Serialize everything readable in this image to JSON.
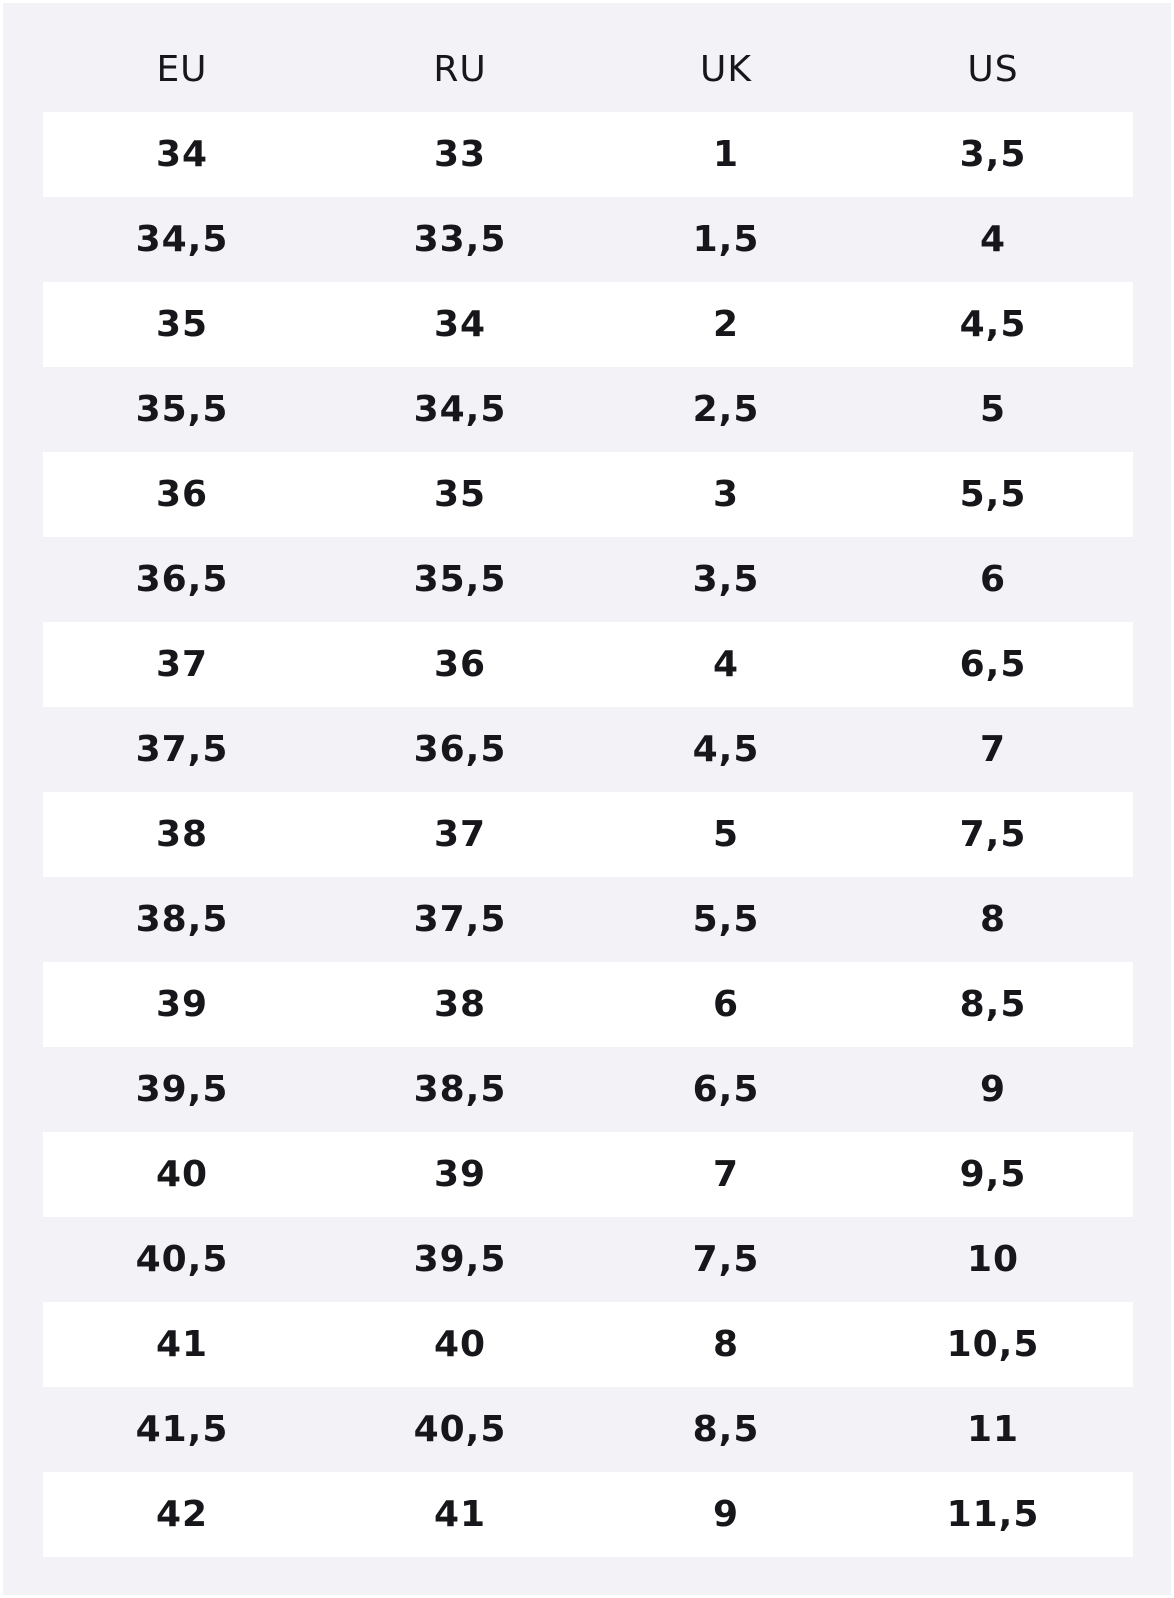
{
  "size_table": {
    "columns": [
      "EU",
      "RU",
      "UK",
      "US"
    ],
    "rows": [
      [
        "34",
        "33",
        "1",
        "3,5"
      ],
      [
        "34,5",
        "33,5",
        "1,5",
        "4"
      ],
      [
        "35",
        "34",
        "2",
        "4,5"
      ],
      [
        "35,5",
        "34,5",
        "2,5",
        "5"
      ],
      [
        "36",
        "35",
        "3",
        "5,5"
      ],
      [
        "36,5",
        "35,5",
        "3,5",
        "6"
      ],
      [
        "37",
        "36",
        "4",
        "6,5"
      ],
      [
        "37,5",
        "36,5",
        "4,5",
        "7"
      ],
      [
        "38",
        "37",
        "5",
        "7,5"
      ],
      [
        "38,5",
        "37,5",
        "5,5",
        "8"
      ],
      [
        "39",
        "38",
        "6",
        "8,5"
      ],
      [
        "39,5",
        "38,5",
        "6,5",
        "9"
      ],
      [
        "40",
        "39",
        "7",
        "9,5"
      ],
      [
        "40,5",
        "39,5",
        "7,5",
        "10"
      ],
      [
        "41",
        "40",
        "8",
        "10,5"
      ],
      [
        "41,5",
        "40,5",
        "8,5",
        "11"
      ],
      [
        "42",
        "41",
        "9",
        "11,5"
      ]
    ]
  },
  "colors": {
    "panel_background": "#f3f3f7",
    "row_highlight": "#ffffff",
    "text": "#17171b"
  }
}
